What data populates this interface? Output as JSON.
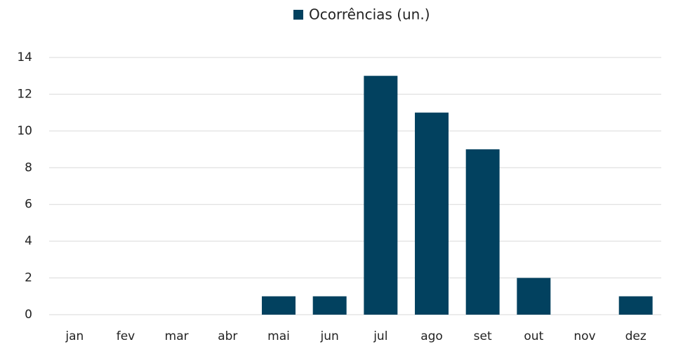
{
  "chart_data": {
    "type": "bar",
    "categories": [
      "jan",
      "fev",
      "mar",
      "abr",
      "mai",
      "jun",
      "jul",
      "ago",
      "set",
      "out",
      "nov",
      "dez"
    ],
    "series": [
      {
        "name": "Ocorrências (un.)",
        "color": "#02415f",
        "values": [
          0,
          0,
          0,
          0,
          1,
          1,
          13,
          11,
          9,
          2,
          0,
          1
        ]
      }
    ],
    "ylim": [
      0,
      14
    ],
    "yticks": [
      0,
      2,
      4,
      6,
      8,
      10,
      12,
      14
    ],
    "grid": true,
    "legend": "top"
  }
}
